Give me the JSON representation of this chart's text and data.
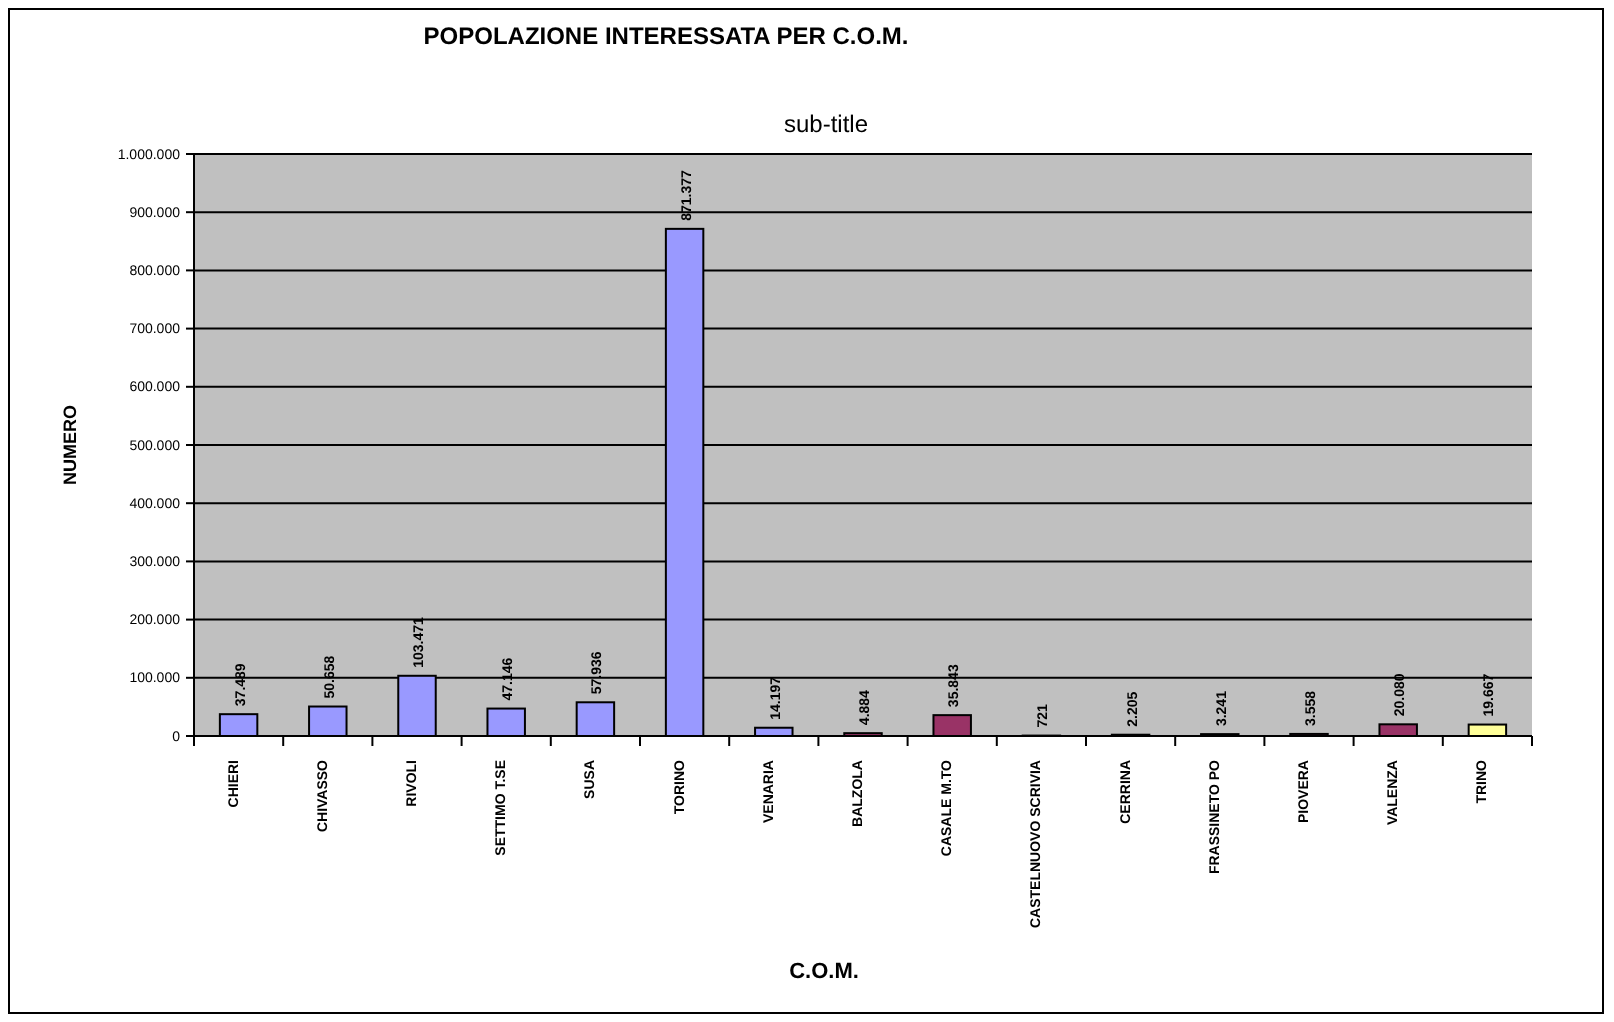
{
  "chart_data": {
    "type": "bar",
    "title": "POPOLAZIONE INTERESSATA PER C.O.M.",
    "subtitle": "sub-title",
    "xlabel": "C.O.M.",
    "ylabel": "NUMERO",
    "categories": [
      "CHIERI",
      "CHIVASSO",
      "RIVOLI",
      "SETTIMO T.SE",
      "SUSA",
      "TORINO",
      "VENARIA",
      "BALZOLA",
      "CASALE M.TO",
      "CASTELNUOVO SCRIVIA",
      "CERRINA",
      "FRASSINETO PO",
      "PIOVERA",
      "VALENZA",
      "TRINO"
    ],
    "values": [
      37489,
      50658,
      103471,
      47146,
      57936,
      871377,
      14197,
      4884,
      35843,
      721,
      2205,
      3241,
      3558,
      20080,
      19667
    ],
    "value_labels": [
      "37.489",
      "50.658",
      "103.471",
      "47.146",
      "57.936",
      "871.377",
      "14.197",
      "4.884",
      "35.843",
      "721",
      "2.205",
      "3.241",
      "3.558",
      "20.080",
      "19.667"
    ],
    "colors": [
      "#9999ff",
      "#9999ff",
      "#9999ff",
      "#9999ff",
      "#9999ff",
      "#9999ff",
      "#9999ff",
      "#993366",
      "#993366",
      "#993366",
      "#993366",
      "#993366",
      "#993366",
      "#993366",
      "#ffff99"
    ],
    "ylim": [
      0,
      1000000
    ],
    "yticks": [
      {
        "value": 0,
        "label": "0"
      },
      {
        "value": 100000,
        "label": "100.000"
      },
      {
        "value": 200000,
        "label": "200.000"
      },
      {
        "value": 300000,
        "label": "300.000"
      },
      {
        "value": 400000,
        "label": "400.000"
      },
      {
        "value": 500000,
        "label": "500.000"
      },
      {
        "value": 600000,
        "label": "600.000"
      },
      {
        "value": 700000,
        "label": "700.000"
      },
      {
        "value": 800000,
        "label": "800.000"
      },
      {
        "value": 900000,
        "label": "900.000"
      },
      {
        "value": 1000000,
        "label": "1.000.000"
      }
    ],
    "grid": "y"
  }
}
